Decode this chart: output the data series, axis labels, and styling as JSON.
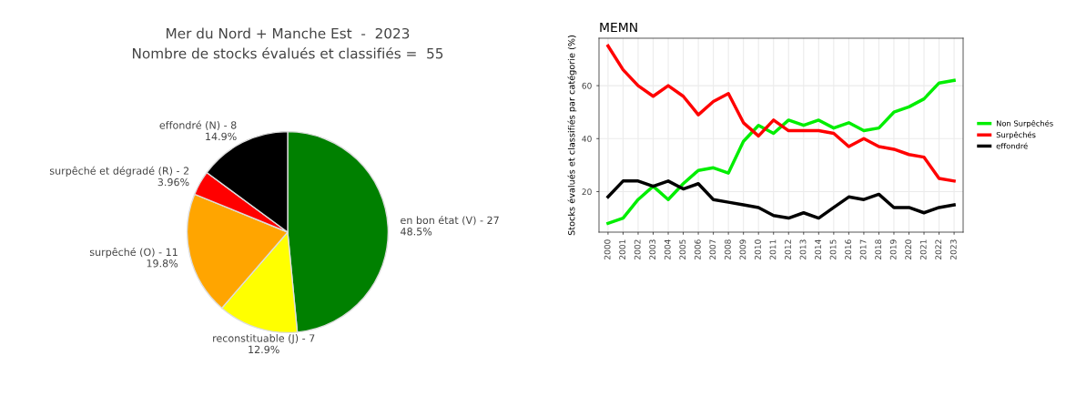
{
  "chart_data": [
    {
      "type": "pie",
      "title": "Mer du Nord + Manche Est  -  2023",
      "subtitle": "Nombre de stocks évalués et classifiés =  55",
      "categories": [
        "en bon état (V) - 27",
        "reconstituable (J) - 7",
        "surpêché (O) - 11",
        "surpêché et dégradé (R) - 2",
        "effondré (N) - 8"
      ],
      "values": [
        48.5,
        12.9,
        19.8,
        3.96,
        14.9
      ],
      "value_labels": [
        "48.5%",
        "12.9%",
        "19.8%",
        "3.96%",
        "14.9%"
      ],
      "colors": [
        "#008000",
        "#ffff00",
        "#ffa500",
        "#ff0000",
        "#000000"
      ]
    },
    {
      "type": "line",
      "title": "MEMN",
      "ylabel": "Stocks évalués et classifiés par catégorie (%)",
      "categories": [
        "2000",
        "2001",
        "2002",
        "2003",
        "2004",
        "2005",
        "2006",
        "2007",
        "2008",
        "2009",
        "2010",
        "2011",
        "2012",
        "2013",
        "2014",
        "2015",
        "2016",
        "2017",
        "2018",
        "2019",
        "2020",
        "2021",
        "2022",
        "2023"
      ],
      "series": [
        {
          "name": "Non Surpêchés",
          "color": "#00ee00",
          "values": [
            8,
            10,
            17,
            22,
            17,
            23,
            28,
            29,
            27,
            39,
            45,
            42,
            47,
            45,
            47,
            44,
            46,
            43,
            44,
            50,
            52,
            55,
            61,
            62
          ]
        },
        {
          "name": "Surpêchés",
          "color": "#ff0000",
          "values": [
            75,
            66,
            60,
            56,
            60,
            56,
            49,
            54,
            57,
            46,
            41,
            47,
            43,
            43,
            43,
            42,
            37,
            40,
            37,
            36,
            34,
            33,
            25,
            24
          ]
        },
        {
          "name": "effondré",
          "color": "#000000",
          "values": [
            18,
            24,
            24,
            22,
            24,
            21,
            23,
            17,
            16,
            15,
            14,
            11,
            10,
            12,
            10,
            14,
            18,
            17,
            19,
            14,
            14,
            12,
            14,
            15
          ]
        }
      ],
      "ylim": [
        4.7,
        77.9
      ],
      "yticks": [
        20,
        40,
        60
      ],
      "grid": true,
      "legend": "right",
      "line_style": "solid"
    }
  ]
}
